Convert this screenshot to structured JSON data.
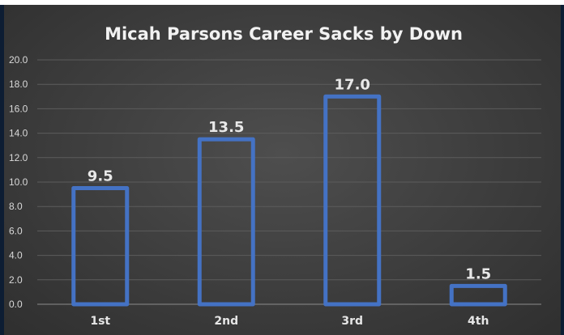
{
  "colors": {
    "bar_outline": "#4472c4",
    "background": "#404040",
    "frame": "#0d1d33"
  },
  "chart_data": {
    "type": "bar",
    "title": "Micah Parsons Career Sacks by Down",
    "xlabel": "",
    "ylabel": "",
    "categories": [
      "1st",
      "2nd",
      "3rd",
      "4th"
    ],
    "values": [
      9.5,
      13.5,
      17.0,
      1.5
    ],
    "data_labels": [
      "9.5",
      "13.5",
      "17.0",
      "1.5"
    ],
    "ylim": [
      0,
      20
    ],
    "yticks": [
      "0.0",
      "2.0",
      "4.0",
      "6.0",
      "8.0",
      "10.0",
      "12.0",
      "14.0",
      "16.0",
      "18.0",
      "20.0"
    ],
    "grid": true,
    "legend": "none"
  }
}
